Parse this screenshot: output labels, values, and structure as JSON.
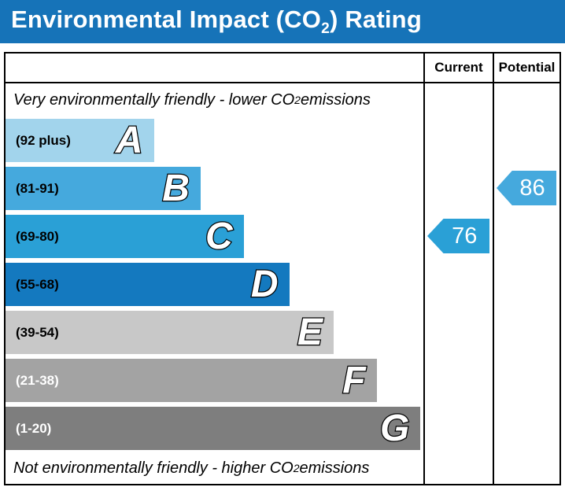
{
  "title": {
    "pre": "Environmental Impact (CO",
    "sub": "2",
    "post": ") Rating"
  },
  "columns": {
    "current": "Current",
    "potential": "Potential"
  },
  "captions": {
    "top": {
      "pre": "Very environmentally friendly - lower CO",
      "sub": "2",
      "post": " emissions"
    },
    "bottom": {
      "pre": "Not environmentally friendly - higher CO",
      "sub": "2",
      "post": " emissions"
    }
  },
  "bands": [
    {
      "letter": "A",
      "range": "(92 plus)",
      "color": "#a2d4ec",
      "width_pct": 35.5,
      "text_color": "#000000"
    },
    {
      "letter": "B",
      "range": "(81-91)",
      "color": "#45a9dd",
      "width_pct": 46.7,
      "text_color": "#000000"
    },
    {
      "letter": "C",
      "range": "(69-80)",
      "color": "#2aa0d6",
      "width_pct": 57.0,
      "text_color": "#000000"
    },
    {
      "letter": "D",
      "range": "(55-68)",
      "color": "#1479bf",
      "width_pct": 67.9,
      "text_color": "#000000"
    },
    {
      "letter": "E",
      "range": "(39-54)",
      "color": "#c8c8c8",
      "width_pct": 78.5,
      "text_color": "#000000"
    },
    {
      "letter": "F",
      "range": "(21-38)",
      "color": "#a3a3a3",
      "width_pct": 88.8,
      "text_color": "#ffffff"
    },
    {
      "letter": "G",
      "range": "(1-20)",
      "color": "#7e7e7e",
      "width_pct": 99.3,
      "text_color": "#ffffff"
    }
  ],
  "ratings": {
    "current": {
      "value": "76",
      "band": "C",
      "color": "#2aa0d6"
    },
    "potential": {
      "value": "86",
      "band": "B",
      "color": "#45a9dd"
    }
  },
  "colors": {
    "title_bar_bg": "#1673b8",
    "title_text": "#ffffff",
    "border": "#000000"
  },
  "chart_data": {
    "type": "bar",
    "orientation": "horizontal",
    "title": "Environmental Impact (CO2) Rating",
    "categories": [
      "A",
      "B",
      "C",
      "D",
      "E",
      "F",
      "G"
    ],
    "band_ranges": [
      "92 plus",
      "81-91",
      "69-80",
      "55-68",
      "39-54",
      "21-38",
      "1-20"
    ],
    "band_widths_pct": [
      35.5,
      46.7,
      57.0,
      67.9,
      78.5,
      88.8,
      99.3
    ],
    "band_colors": [
      "#a2d4ec",
      "#45a9dd",
      "#2aa0d6",
      "#1479bf",
      "#c8c8c8",
      "#a3a3a3",
      "#7e7e7e"
    ],
    "columns": [
      "Current",
      "Potential"
    ],
    "current_rating": {
      "value": 76,
      "band": "C"
    },
    "potential_rating": {
      "value": 86,
      "band": "B"
    },
    "annotations": [
      "Very environmentally friendly - lower CO2 emissions",
      "Not environmentally friendly - higher CO2 emissions"
    ],
    "legend_position": "none",
    "grid": false
  }
}
